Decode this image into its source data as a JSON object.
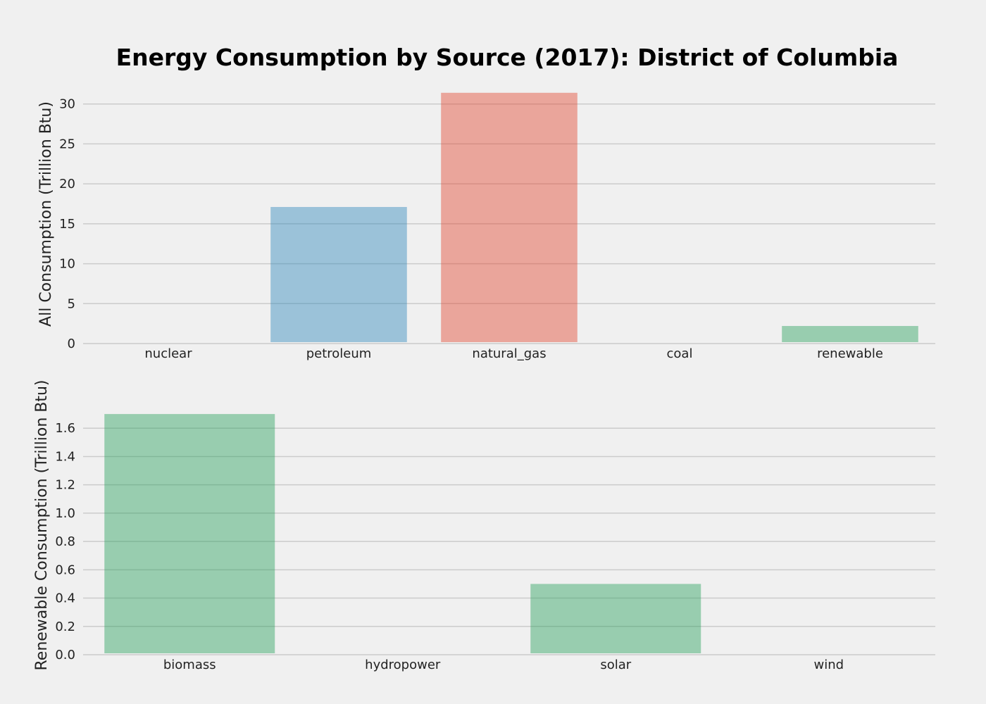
{
  "chart_data": [
    {
      "type": "bar",
      "title": "Energy Consumption by Source (2017): District of Columbia",
      "xlabel": "",
      "ylabel": "All Consumption (Trillion Btu)",
      "categories": [
        "nuclear",
        "petroleum",
        "natural_gas",
        "coal",
        "renewable"
      ],
      "values": [
        0,
        17.1,
        31.4,
        0,
        2.2
      ],
      "colors": [
        "#348abd",
        "#348abd",
        "#e24a33",
        "#777777",
        "#2ca25f"
      ],
      "ylim": [
        0,
        32
      ],
      "yticks": [
        0,
        5,
        10,
        15,
        20,
        25,
        30
      ],
      "ytick_labels": [
        "0",
        "5",
        "10",
        "15",
        "20",
        "25",
        "30"
      ],
      "grid": true
    },
    {
      "type": "bar",
      "xlabel": "",
      "ylabel": "Renewable Consumption (Trillion Btu)",
      "categories": [
        "biomass",
        "hydropower",
        "solar",
        "wind"
      ],
      "values": [
        1.7,
        0,
        0.5,
        0
      ],
      "colors": [
        "#2ca25f",
        "#2ca25f",
        "#2ca25f",
        "#2ca25f"
      ],
      "ylim": [
        0,
        1.8
      ],
      "yticks": [
        0,
        0.2,
        0.4,
        0.6,
        0.8,
        1.0,
        1.2,
        1.4,
        1.6
      ],
      "ytick_labels": [
        "0.0",
        "0.2",
        "0.4",
        "0.6",
        "0.8",
        "1.0",
        "1.2",
        "1.4",
        "1.6"
      ],
      "grid": true
    }
  ]
}
